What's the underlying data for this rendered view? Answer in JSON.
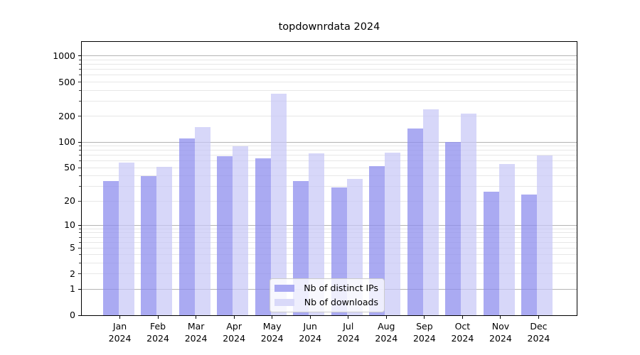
{
  "chart_data": {
    "type": "bar",
    "title": "topdownrdata 2024",
    "year": "2024",
    "categories": [
      "Jan",
      "Feb",
      "Mar",
      "Apr",
      "May",
      "Jun",
      "Jul",
      "Aug",
      "Sep",
      "Oct",
      "Nov",
      "Dec"
    ],
    "series": [
      {
        "name": "Nb of distinct IPs",
        "color": "#a8a8f2",
        "fill": "rgba(142,142,238,0.75)",
        "values": [
          35,
          40,
          110,
          68,
          65,
          35,
          29,
          52,
          145,
          100,
          26,
          24
        ]
      },
      {
        "name": "Nb of downloads",
        "color": "#d9d9f9",
        "fill": "rgba(198,198,246,0.70)",
        "values": [
          57,
          51,
          150,
          90,
          365,
          74,
          37,
          75,
          240,
          215,
          55,
          70
        ]
      }
    ],
    "y_axis": {
      "scale": "log1p",
      "ticks": [
        0,
        1,
        2,
        5,
        10,
        20,
        50,
        100,
        200,
        500,
        1000
      ],
      "major_gridlines": [
        1,
        10,
        100,
        1000
      ],
      "range_top": 1460
    },
    "grid": {
      "major_color": "#b4b4b4",
      "minor_color": "#e7e7e7",
      "minor_on": true
    },
    "legend": {
      "position": "bottom-center"
    }
  }
}
